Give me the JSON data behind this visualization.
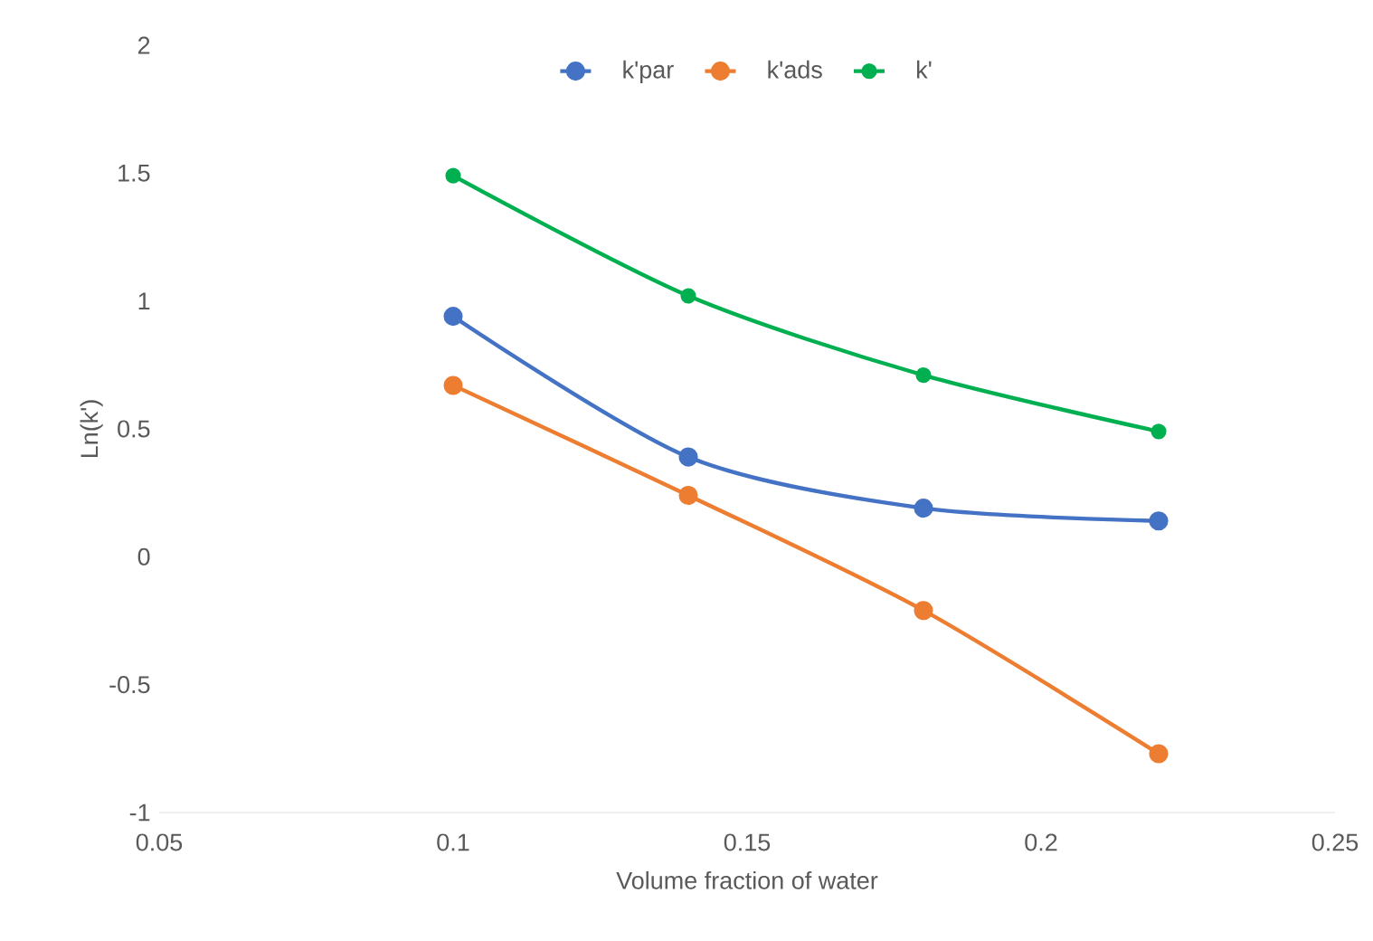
{
  "chart_data": {
    "type": "line",
    "xlabel": "Volume fraction of water",
    "ylabel": "Ln(k')",
    "x": [
      0.1,
      0.14,
      0.18,
      0.22
    ],
    "series": [
      {
        "name": "k'par",
        "color": "#4472c4",
        "values": [
          0.94,
          0.39,
          0.19,
          0.14
        ]
      },
      {
        "name": "k'ads",
        "color": "#ed7d31",
        "values": [
          0.67,
          0.24,
          -0.21,
          -0.77
        ]
      },
      {
        "name": "k'",
        "color": "#00b050",
        "values": [
          1.49,
          1.02,
          0.71,
          0.49
        ]
      }
    ],
    "xlim": [
      0.05,
      0.25
    ],
    "xticks": [
      0.05,
      0.1,
      0.15,
      0.2,
      0.25
    ],
    "ylim": [
      -1,
      2
    ],
    "yticks": [
      -1,
      -0.5,
      0,
      0.5,
      1,
      1.5,
      2
    ],
    "marker": "circle",
    "legend": "top",
    "grid": false
  }
}
